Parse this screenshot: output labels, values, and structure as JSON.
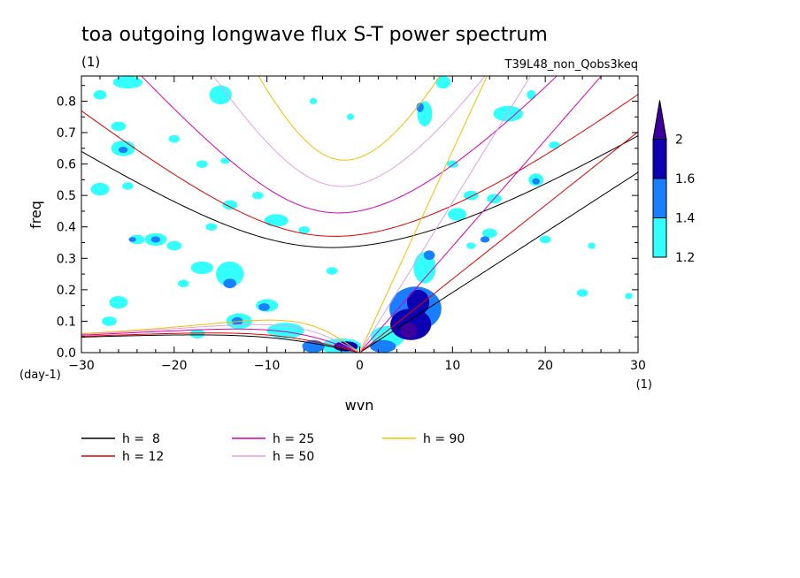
{
  "chart_data": {
    "type": "contour",
    "title": "toa outgoing longwave flux S-T power spectrum",
    "subtitle_left": "(1)",
    "subtitle_right": "T39L48_non_Qobs3keq",
    "xlabel": "wvn",
    "ylabel": "freq",
    "x_unit": "(1)",
    "y_unit": "(day-1)",
    "xlim": [
      -30,
      30
    ],
    "ylim": [
      0,
      0.88
    ],
    "x_ticks": [
      -30,
      -20,
      -10,
      0,
      10,
      20,
      30
    ],
    "y_ticks": [
      0.0,
      0.1,
      0.2,
      0.3,
      0.4,
      0.5,
      0.6,
      0.7,
      0.8
    ],
    "colorbar": {
      "levels": [
        1.2,
        1.4,
        1.6,
        2
      ],
      "colors": [
        "#33ffff",
        "#1a7fff",
        "#0d00b3",
        "#3d009c"
      ]
    },
    "dispersion_curves": [
      {
        "name": "h =  8",
        "h": 8,
        "color": "#000000"
      },
      {
        "name": "h = 12",
        "h": 12,
        "color": "#e00000"
      },
      {
        "name": "h = 25",
        "h": 25,
        "color": "#d400b0"
      },
      {
        "name": "h = 50",
        "h": 50,
        "color": "#e2a0e2"
      },
      {
        "name": "h = 90",
        "h": 90,
        "color": "#f0c000"
      }
    ],
    "contour_patches": [
      {
        "x": 6.0,
        "y": 0.14,
        "rx": 2.8,
        "ry": 0.07,
        "level": 1
      },
      {
        "x": 5.5,
        "y": 0.09,
        "rx": 2.2,
        "ry": 0.05,
        "level": 2
      },
      {
        "x": 6.3,
        "y": 0.16,
        "rx": 1.2,
        "ry": 0.04,
        "level": 2
      },
      {
        "x": 5.3,
        "y": 0.07,
        "rx": 0.9,
        "ry": 0.025,
        "level": 3
      },
      {
        "x": 7.0,
        "y": 0.27,
        "rx": 1.2,
        "ry": 0.05,
        "level": 0
      },
      {
        "x": 7.5,
        "y": 0.31,
        "rx": 0.6,
        "ry": 0.015,
        "level": 1
      },
      {
        "x": 3.0,
        "y": 0.05,
        "rx": 1.8,
        "ry": 0.035,
        "level": 0
      },
      {
        "x": 2.5,
        "y": 0.02,
        "rx": 1.4,
        "ry": 0.02,
        "level": 1
      },
      {
        "x": -2.0,
        "y": 0.02,
        "rx": 2.2,
        "ry": 0.025,
        "level": 0
      },
      {
        "x": -1.5,
        "y": 0.02,
        "rx": 1.3,
        "ry": 0.016,
        "level": 2
      },
      {
        "x": -5.0,
        "y": 0.02,
        "rx": 1.2,
        "ry": 0.02,
        "level": 1
      },
      {
        "x": -8.0,
        "y": 0.07,
        "rx": 2.0,
        "ry": 0.025,
        "level": 0
      },
      {
        "x": -10.0,
        "y": 0.15,
        "rx": 1.2,
        "ry": 0.02,
        "level": 0
      },
      {
        "x": -10.3,
        "y": 0.145,
        "rx": 0.6,
        "ry": 0.012,
        "level": 1
      },
      {
        "x": -13.0,
        "y": 0.1,
        "rx": 1.4,
        "ry": 0.025,
        "level": 0
      },
      {
        "x": -13.2,
        "y": 0.1,
        "rx": 0.6,
        "ry": 0.013,
        "level": 1
      },
      {
        "x": -14.0,
        "y": 0.25,
        "rx": 1.5,
        "ry": 0.04,
        "level": 0
      },
      {
        "x": -14.0,
        "y": 0.22,
        "rx": 0.7,
        "ry": 0.015,
        "level": 1
      },
      {
        "x": -17.0,
        "y": 0.27,
        "rx": 1.2,
        "ry": 0.02,
        "level": 0
      },
      {
        "x": -17.5,
        "y": 0.06,
        "rx": 0.8,
        "ry": 0.015,
        "level": 0
      },
      {
        "x": -26.0,
        "y": 0.16,
        "rx": 1.0,
        "ry": 0.02,
        "level": 0
      },
      {
        "x": -27.0,
        "y": 0.1,
        "rx": 0.8,
        "ry": 0.015,
        "level": 0
      },
      {
        "x": -20.0,
        "y": 0.34,
        "rx": 0.8,
        "ry": 0.015,
        "level": 0
      },
      {
        "x": -22.0,
        "y": 0.36,
        "rx": 1.2,
        "ry": 0.02,
        "level": 0
      },
      {
        "x": -22.0,
        "y": 0.36,
        "rx": 0.5,
        "ry": 0.01,
        "level": 1
      },
      {
        "x": -24.0,
        "y": 0.36,
        "rx": 0.8,
        "ry": 0.015,
        "level": 0
      },
      {
        "x": -24.5,
        "y": 0.36,
        "rx": 0.4,
        "ry": 0.008,
        "level": 1
      },
      {
        "x": -25.5,
        "y": 0.65,
        "rx": 1.3,
        "ry": 0.025,
        "level": 0
      },
      {
        "x": -25.5,
        "y": 0.645,
        "rx": 0.5,
        "ry": 0.01,
        "level": 1
      },
      {
        "x": -28.0,
        "y": 0.52,
        "rx": 1.0,
        "ry": 0.02,
        "level": 0
      },
      {
        "x": -25.0,
        "y": 0.53,
        "rx": 0.6,
        "ry": 0.012,
        "level": 0
      },
      {
        "x": -26.0,
        "y": 0.72,
        "rx": 0.8,
        "ry": 0.015,
        "level": 0
      },
      {
        "x": -28.0,
        "y": 0.82,
        "rx": 0.7,
        "ry": 0.015,
        "level": 0
      },
      {
        "x": -25.0,
        "y": 0.86,
        "rx": 1.6,
        "ry": 0.02,
        "level": 0
      },
      {
        "x": -15.0,
        "y": 0.82,
        "rx": 1.2,
        "ry": 0.03,
        "level": 0
      },
      {
        "x": -17.0,
        "y": 0.6,
        "rx": 0.6,
        "ry": 0.012,
        "level": 0
      },
      {
        "x": -14.5,
        "y": 0.61,
        "rx": 0.5,
        "ry": 0.01,
        "level": 0
      },
      {
        "x": -20.0,
        "y": 0.68,
        "rx": 0.6,
        "ry": 0.012,
        "level": 0
      },
      {
        "x": -14.0,
        "y": 0.47,
        "rx": 0.8,
        "ry": 0.015,
        "level": 0
      },
      {
        "x": -11.0,
        "y": 0.5,
        "rx": 0.6,
        "ry": 0.012,
        "level": 0
      },
      {
        "x": -9.0,
        "y": 0.42,
        "rx": 1.3,
        "ry": 0.02,
        "level": 0
      },
      {
        "x": -6.0,
        "y": 0.39,
        "rx": 0.6,
        "ry": 0.012,
        "level": 0
      },
      {
        "x": -3.0,
        "y": 0.26,
        "rx": 0.6,
        "ry": 0.012,
        "level": 0
      },
      {
        "x": -1.0,
        "y": 0.75,
        "rx": 0.4,
        "ry": 0.01,
        "level": 0
      },
      {
        "x": 7.0,
        "y": 0.76,
        "rx": 0.8,
        "ry": 0.04,
        "level": 0
      },
      {
        "x": 6.5,
        "y": 0.78,
        "rx": 0.4,
        "ry": 0.015,
        "level": 1
      },
      {
        "x": 9.0,
        "y": 0.86,
        "rx": 0.8,
        "ry": 0.02,
        "level": 0
      },
      {
        "x": 10.0,
        "y": 0.6,
        "rx": 0.6,
        "ry": 0.012,
        "level": 0
      },
      {
        "x": 10.5,
        "y": 0.44,
        "rx": 1.0,
        "ry": 0.02,
        "level": 0
      },
      {
        "x": 12.0,
        "y": 0.5,
        "rx": 0.8,
        "ry": 0.015,
        "level": 0
      },
      {
        "x": 14.0,
        "y": 0.38,
        "rx": 0.8,
        "ry": 0.015,
        "level": 0
      },
      {
        "x": 13.5,
        "y": 0.36,
        "rx": 0.5,
        "ry": 0.01,
        "level": 1
      },
      {
        "x": 12.0,
        "y": 0.34,
        "rx": 0.5,
        "ry": 0.01,
        "level": 0
      },
      {
        "x": 14.5,
        "y": 0.49,
        "rx": 0.8,
        "ry": 0.015,
        "level": 0
      },
      {
        "x": 16.0,
        "y": 0.76,
        "rx": 1.6,
        "ry": 0.025,
        "level": 0
      },
      {
        "x": 18.5,
        "y": 0.82,
        "rx": 0.5,
        "ry": 0.015,
        "level": 0
      },
      {
        "x": 19.0,
        "y": 0.55,
        "rx": 0.8,
        "ry": 0.02,
        "level": 0
      },
      {
        "x": 19.0,
        "y": 0.545,
        "rx": 0.4,
        "ry": 0.01,
        "level": 1
      },
      {
        "x": 20.0,
        "y": 0.36,
        "rx": 0.6,
        "ry": 0.012,
        "level": 0
      },
      {
        "x": 21.0,
        "y": 0.66,
        "rx": 0.6,
        "ry": 0.012,
        "level": 0
      },
      {
        "x": 24.0,
        "y": 0.19,
        "rx": 0.6,
        "ry": 0.012,
        "level": 0
      },
      {
        "x": 25.0,
        "y": 0.34,
        "rx": 0.4,
        "ry": 0.01,
        "level": 0
      },
      {
        "x": 29.0,
        "y": 0.18,
        "rx": 0.4,
        "ry": 0.01,
        "level": 0
      },
      {
        "x": -19.0,
        "y": 0.22,
        "rx": 0.6,
        "ry": 0.012,
        "level": 0
      },
      {
        "x": -16.0,
        "y": 0.4,
        "rx": 0.6,
        "ry": 0.012,
        "level": 0
      },
      {
        "x": -5.0,
        "y": 0.8,
        "rx": 0.4,
        "ry": 0.01,
        "level": 0
      }
    ]
  }
}
